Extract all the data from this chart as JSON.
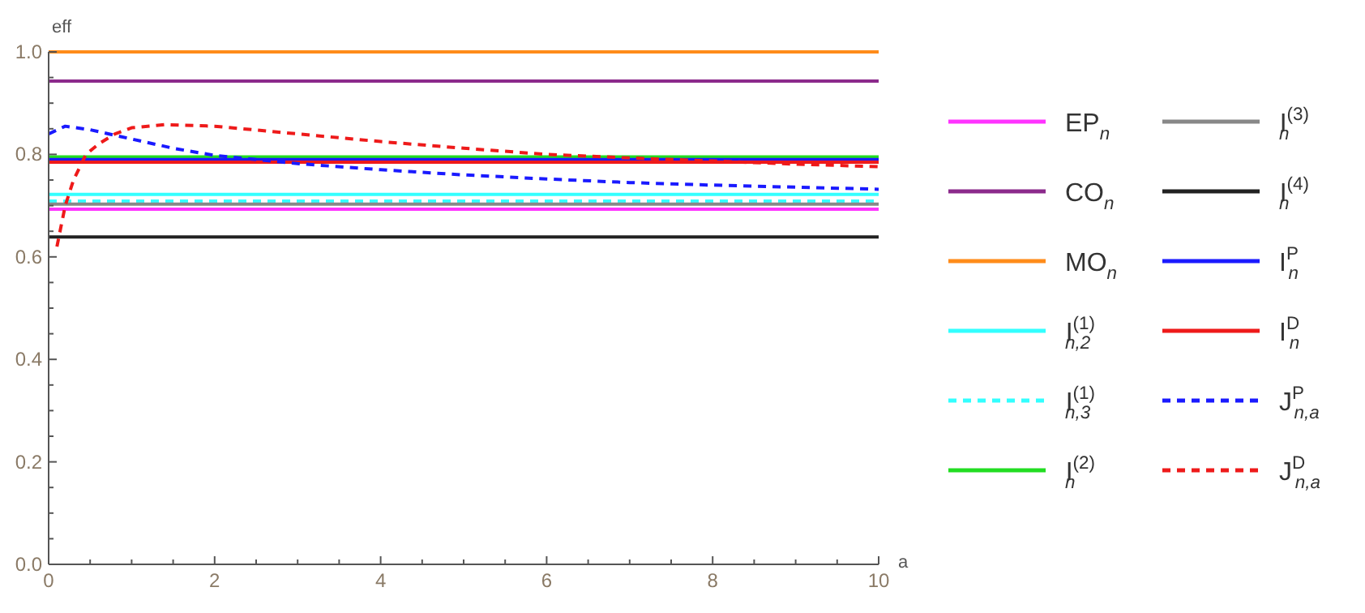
{
  "chart_data": {
    "type": "line",
    "xlabel": "a",
    "ylabel": "eff",
    "x": [
      0,
      10
    ],
    "xlim": [
      0,
      10
    ],
    "ylim": [
      0,
      1
    ],
    "xticks": [
      0,
      {
        "value": 0.5,
        "label": null
      },
      2,
      {
        "value": 1,
        "label": null
      },
      {
        "value": 1.5,
        "label": null
      },
      {
        "value": 2.5,
        "label": null
      },
      {
        "value": 3,
        "label": null
      },
      {
        "value": 3.5,
        "label": null
      },
      4,
      {
        "value": 4.5,
        "label": null
      },
      {
        "value": 5,
        "label": null
      },
      {
        "value": 5.5,
        "label": null
      },
      6,
      {
        "value": 6.5,
        "label": null
      },
      {
        "value": 7,
        "label": null
      },
      {
        "value": 7.5,
        "label": null
      },
      8,
      {
        "value": 8.5,
        "label": null
      },
      {
        "value": 9,
        "label": null
      },
      {
        "value": 9.5,
        "label": null
      },
      10
    ],
    "yticks": [
      {
        "value": 0,
        "label": "0.0"
      },
      {
        "value": 0.05,
        "label": null
      },
      {
        "value": 0.1,
        "label": null
      },
      {
        "value": 0.15,
        "label": null
      },
      0.2,
      {
        "value": 0.25,
        "label": null
      },
      {
        "value": 0.3,
        "label": null
      },
      {
        "value": 0.35,
        "label": null
      },
      0.4,
      {
        "value": 0.45,
        "label": null
      },
      {
        "value": 0.5,
        "label": null
      },
      {
        "value": 0.55,
        "label": null
      },
      0.6,
      {
        "value": 0.65,
        "label": null
      },
      {
        "value": 0.7,
        "label": null
      },
      {
        "value": 0.75,
        "label": null
      },
      0.8,
      {
        "value": 0.85,
        "label": null
      },
      {
        "value": 0.9,
        "label": null
      },
      {
        "value": 0.95,
        "label": null
      },
      {
        "value": 1,
        "label": "1.0"
      }
    ],
    "grid": false,
    "legend": "right",
    "series": [
      {
        "name": "EP$_{n}$",
        "color": "#ff33ff",
        "values": [
          0.693,
          0.693
        ]
      },
      {
        "name": "CO$_{n}$",
        "color": "#8b2a8b",
        "values": [
          0.943,
          0.943
        ]
      },
      {
        "name": "MO$_{n}$",
        "color": "#ff8c1a",
        "values": [
          1,
          1
        ]
      },
      {
        "name": "I$^{(1)}$$_{n,2}$",
        "color": "#33ffff",
        "values": [
          0.722,
          0.722
        ]
      },
      {
        "name": "I$^{(1)}$$_{n,3}$",
        "color": "#33ffff",
        "line_style": "dashed",
        "values": [
          0.709,
          0.709
        ]
      },
      {
        "name": "I$^{(2)}$$_{n}$",
        "color": "#22dd22",
        "values": [
          0.795,
          0.795
        ]
      },
      {
        "name": "I$^{(3)}$$_{n}$",
        "color": "#888888",
        "values": [
          0.703,
          0.703
        ]
      },
      {
        "name": "I$^{(4)}$$_{n}$",
        "color": "#222222",
        "values": [
          0.639,
          0.639
        ]
      },
      {
        "name": "I$^{P}$$_{n}$",
        "color": "#1a1aff",
        "values": [
          0.79,
          0.79
        ]
      },
      {
        "name": "I$^{D}$$_{n}$",
        "color": "#ee1a1a",
        "values": [
          0.785,
          0.785
        ]
      },
      {
        "name": "J$^{P}$$_{n,a}$",
        "color": "#1a1aff",
        "line_style": "dashed",
        "x": [
          0,
          0.2,
          0.5,
          1,
          1.5,
          2,
          3,
          4,
          5,
          6,
          7,
          8,
          9,
          10
        ],
        "values": [
          0.84,
          0.855,
          0.848,
          0.83,
          0.812,
          0.798,
          0.782,
          0.77,
          0.76,
          0.752,
          0.745,
          0.74,
          0.736,
          0.732
        ]
      },
      {
        "name": "J$^{D}$$_{n,a}$",
        "color": "#ee1a1a",
        "line_style": "dashed",
        "x": [
          0.1,
          0.2,
          0.3,
          0.45,
          0.6,
          0.8,
          1,
          1.4,
          2,
          3,
          4,
          5,
          6,
          7,
          8,
          9,
          10
        ],
        "values": [
          0.62,
          0.7,
          0.75,
          0.8,
          0.82,
          0.84,
          0.852,
          0.858,
          0.855,
          0.84,
          0.825,
          0.812,
          0.8,
          0.793,
          0.787,
          0.781,
          0.776
        ]
      }
    ]
  }
}
